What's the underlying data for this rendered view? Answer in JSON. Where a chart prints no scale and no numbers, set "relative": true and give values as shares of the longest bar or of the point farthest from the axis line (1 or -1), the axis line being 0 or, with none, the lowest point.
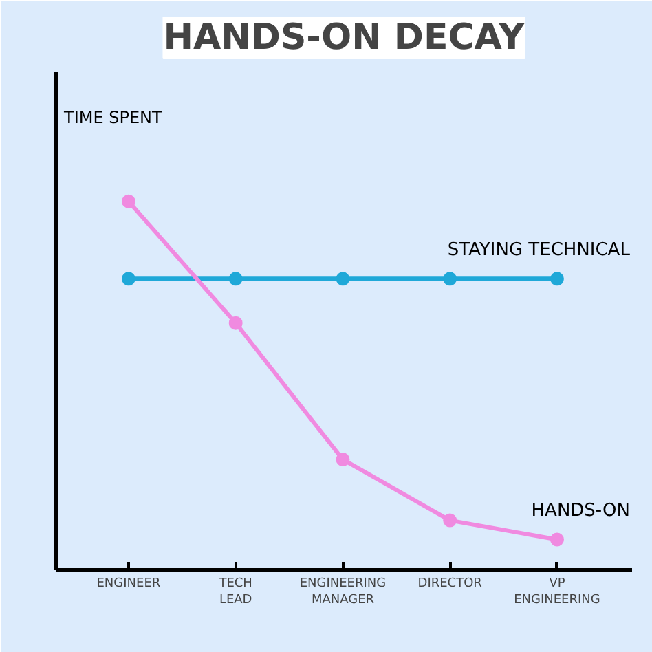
{
  "chart_data": {
    "type": "line",
    "title": "HANDS-ON DECAY",
    "ylabel": "TIME SPENT",
    "relative": true,
    "marker": "circle",
    "line_style": "solid",
    "categories": [
      "ENGINEER",
      "TECH\nLEAD",
      "ENGINEERING\nMANAGER",
      "DIRECTOR",
      "VP\nENGINEERING"
    ],
    "series": [
      {
        "name": "STAYING TECHNICAL",
        "color": "#1fa8d8",
        "values": [
          0.79,
          0.79,
          0.79,
          0.79,
          0.79
        ]
      },
      {
        "name": "HANDS-ON",
        "color": "#f08ae0",
        "values": [
          1,
          0.67,
          0.3,
          0.135,
          0.083
        ]
      }
    ]
  }
}
